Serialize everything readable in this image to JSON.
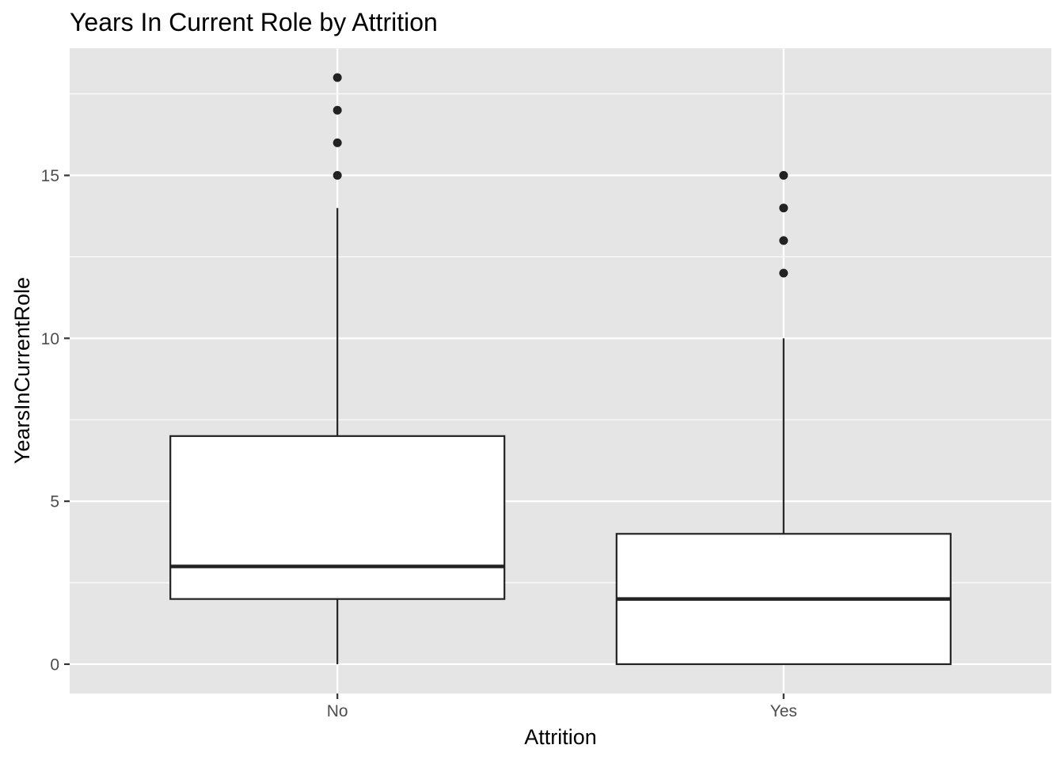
{
  "chart_data": {
    "type": "boxplot",
    "title": "Years In Current Role by Attrition",
    "xlabel": "Attrition",
    "ylabel": "YearsInCurrentRole",
    "categories": [
      "No",
      "Yes"
    ],
    "boxes": [
      {
        "category": "No",
        "min": 0,
        "q1": 2,
        "median": 3,
        "q3": 7,
        "max": 14,
        "outliers": [
          15,
          16,
          17,
          18
        ]
      },
      {
        "category": "Yes",
        "min": 0,
        "q1": 0,
        "median": 2,
        "q3": 4,
        "max": 10,
        "outliers": [
          12,
          13,
          14,
          15
        ]
      }
    ],
    "yticks": [
      0,
      5,
      10,
      15
    ],
    "ylim": [
      -0.9,
      18.9
    ],
    "grid": true,
    "colors": {
      "panel": "#e5e5e5",
      "grid": "#ffffff",
      "box_fill": "#ffffff",
      "stroke": "#222222",
      "tick_text": "#4d4d4d"
    }
  }
}
